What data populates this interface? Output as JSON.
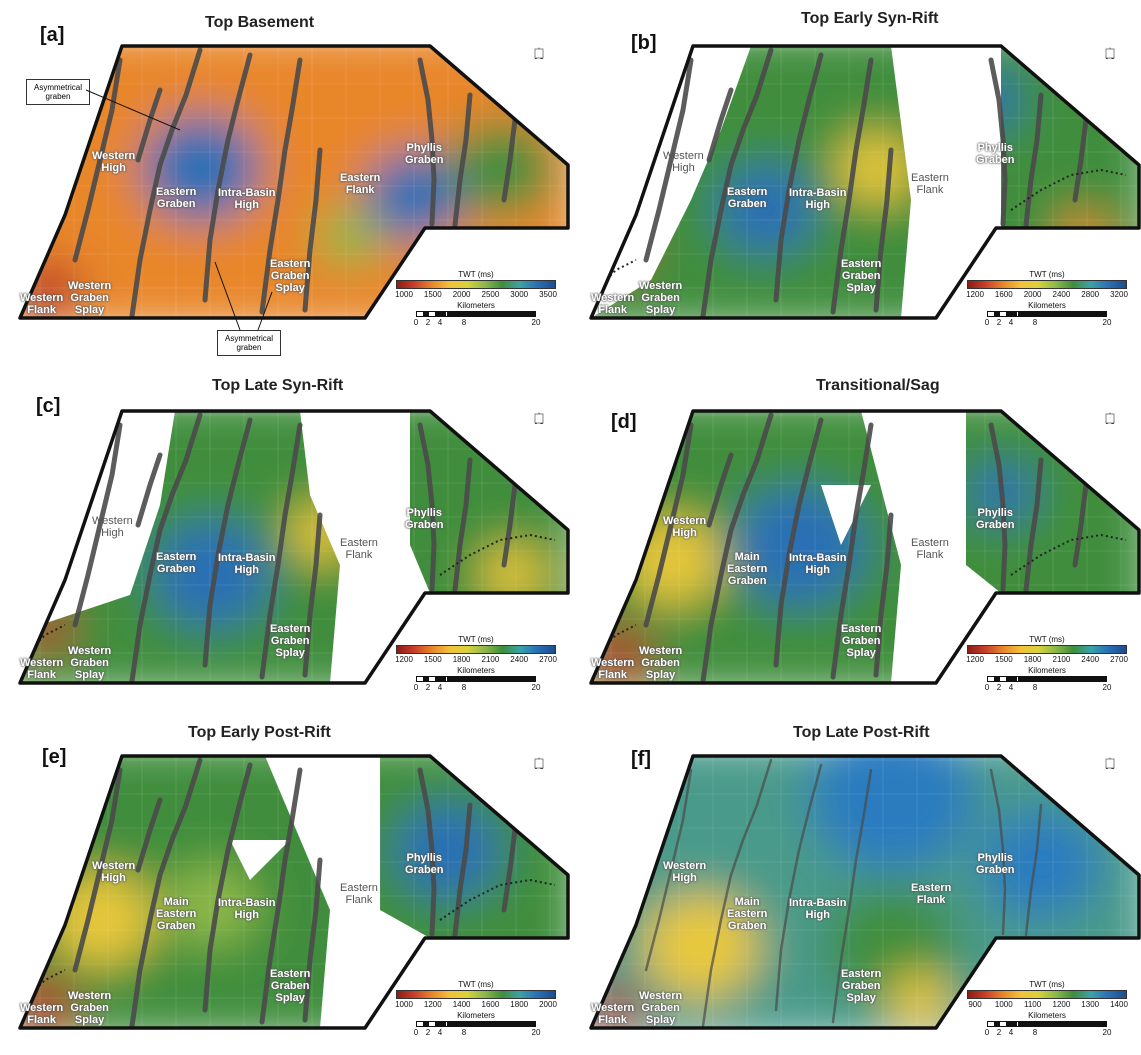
{
  "compass_letter": "N",
  "colors": {
    "red": "#b8312a",
    "orange": "#e8862a",
    "yellow": "#e8c83a",
    "green": "#3f8e3c",
    "light_green": "#8db84a",
    "blue": "#2a6fb5",
    "fault": "#444444"
  },
  "callouts": {
    "upper": "Asymmetrical\ngraben",
    "lower": "Asymmetrical\ngraben"
  },
  "scale_common": {
    "title": "Kilometers",
    "ticks": [
      "0",
      "2",
      "4",
      "8",
      "20"
    ]
  },
  "legend_title": "TWT (ms)",
  "panels": [
    {
      "letter": "[a]",
      "title": "Top Basement",
      "legend_ticks": [
        "1000",
        "1500",
        "2000",
        "2500",
        "3000",
        "3500"
      ],
      "labels": {
        "western_high": "Western\nHigh",
        "eastern_graben": "Eastern\nGraben",
        "intra_basin_high": "Intra-Basin\nHigh",
        "eastern_flank": "Eastern\nFlank",
        "phyllis_graben": "Phyllis\nGraben",
        "eastern_graben_splay": "Eastern\nGraben\nSplay",
        "western_graben_splay": "Western\nGraben\nSplay",
        "western_flank": "Western\nFlank"
      }
    },
    {
      "letter": "[b]",
      "title": "Top Early Syn-Rift",
      "legend_ticks": [
        "1200",
        "1600",
        "2000",
        "2400",
        "2800",
        "3200"
      ],
      "labels": {
        "western_high": "Western\nHigh",
        "eastern_graben": "Eastern\nGraben",
        "intra_basin_high": "Intra-Basin\nHigh",
        "eastern_flank": "Eastern\nFlank",
        "phyllis_graben": "Phyllis\nGraben",
        "eastern_graben_splay": "Eastern\nGraben\nSplay",
        "western_graben_splay": "Western\nGraben\nSplay",
        "western_flank": "Western\nFlank"
      }
    },
    {
      "letter": "[c]",
      "title": "Top Late Syn-Rift",
      "legend_ticks": [
        "1200",
        "1500",
        "1800",
        "2100",
        "2400",
        "2700"
      ],
      "labels": {
        "western_high": "Western\nHigh",
        "eastern_graben": "Eastern\nGraben",
        "intra_basin_high": "Intra-Basin\nHigh",
        "eastern_flank": "Eastern\nFlank",
        "phyllis_graben": "Phyllis\nGraben",
        "eastern_graben_splay": "Eastern\nGraben\nSplay",
        "western_graben_splay": "Western\nGraben\nSplay",
        "western_flank": "Western\nFlank"
      }
    },
    {
      "letter": "[d]",
      "title": "Transitional/Sag",
      "legend_ticks": [
        "1200",
        "1500",
        "1800",
        "2100",
        "2400",
        "2700"
      ],
      "labels": {
        "western_high": "Western\nHigh",
        "eastern_graben": "Main\nEastern\nGraben",
        "intra_basin_high": "Intra-Basin\nHigh",
        "eastern_flank": "Eastern\nFlank",
        "phyllis_graben": "Phyllis\nGraben",
        "eastern_graben_splay": "Eastern\nGraben\nSplay",
        "western_graben_splay": "Western\nGraben\nSplay",
        "western_flank": "Western\nFlank"
      }
    },
    {
      "letter": "[e]",
      "title": "Top Early Post-Rift",
      "legend_ticks": [
        "1000",
        "1200",
        "1400",
        "1600",
        "1800",
        "2000"
      ],
      "labels": {
        "western_high": "Western\nHigh",
        "eastern_graben": "Main\nEastern\nGraben",
        "intra_basin_high": "Intra-Basin\nHigh",
        "eastern_flank": "Eastern\nFlank",
        "phyllis_graben": "Phyllis\nGraben",
        "eastern_graben_splay": "Eastern\nGraben\nSplay",
        "western_graben_splay": "Western\nGraben\nSplay",
        "western_flank": "Western\nFlank"
      }
    },
    {
      "letter": "[f]",
      "title": "Top Late Post-Rift",
      "legend_ticks": [
        "900",
        "1000",
        "1100",
        "1200",
        "1300",
        "1400"
      ],
      "labels": {
        "western_high": "Western\nHigh",
        "eastern_graben": "Main\nEastern\nGraben",
        "intra_basin_high": "Intra-Basin\nHigh",
        "eastern_flank": "Eastern\nFlank",
        "phyllis_graben": "Phyllis\nGraben",
        "eastern_graben_splay": "Eastern\nGraben\nSplay",
        "western_graben_splay": "Western\nGraben\nSplay",
        "western_flank": "Western\nFlank"
      }
    }
  ]
}
